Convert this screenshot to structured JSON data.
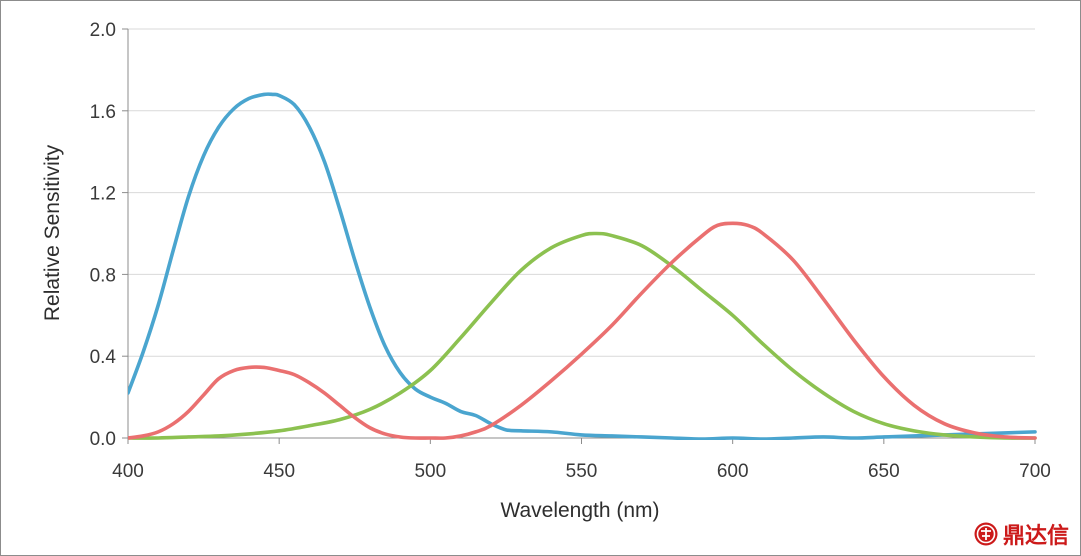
{
  "chart_data": {
    "type": "line",
    "xlabel": "Wavelength (nm)",
    "ylabel": "Relative Sensitivity",
    "xlim": [
      400,
      700
    ],
    "ylim": [
      0,
      2.0
    ],
    "xticks": [
      400,
      450,
      500,
      550,
      600,
      650,
      700
    ],
    "yticks": [
      "0.0",
      "0.4",
      "0.8",
      "1.2",
      "1.6",
      "2.0"
    ],
    "grid": "horizontal",
    "series": [
      {
        "name": "blue",
        "color": "#4aa5cf",
        "x": [
          400,
          405,
          410,
          415,
          420,
          425,
          430,
          435,
          440,
          445,
          448,
          450,
          455,
          460,
          465,
          470,
          475,
          480,
          485,
          490,
          495,
          500,
          505,
          510,
          515,
          520,
          525,
          530,
          540,
          550,
          560,
          570,
          580,
          590,
          600,
          610,
          620,
          630,
          640,
          650,
          660,
          670,
          680,
          690,
          700
        ],
        "y": [
          0.22,
          0.42,
          0.65,
          0.92,
          1.18,
          1.38,
          1.52,
          1.61,
          1.66,
          1.68,
          1.68,
          1.675,
          1.63,
          1.52,
          1.35,
          1.12,
          0.87,
          0.64,
          0.45,
          0.32,
          0.24,
          0.2,
          0.17,
          0.13,
          0.11,
          0.07,
          0.04,
          0.035,
          0.03,
          0.015,
          0.01,
          0.005,
          0.0,
          -0.005,
          0.0,
          -0.005,
          0.0,
          0.005,
          0.0,
          0.005,
          0.01,
          0.015,
          0.02,
          0.025,
          0.03
        ]
      },
      {
        "name": "green",
        "color": "#8cc150",
        "x": [
          400,
          410,
          420,
          430,
          440,
          450,
          460,
          470,
          480,
          490,
          500,
          510,
          520,
          530,
          540,
          550,
          555,
          560,
          570,
          580,
          590,
          600,
          610,
          620,
          630,
          640,
          650,
          660,
          670,
          680,
          690,
          700
        ],
        "y": [
          0.0,
          0.0,
          0.005,
          0.01,
          0.02,
          0.035,
          0.06,
          0.09,
          0.14,
          0.22,
          0.33,
          0.49,
          0.66,
          0.82,
          0.93,
          0.99,
          1.0,
          0.99,
          0.94,
          0.84,
          0.72,
          0.6,
          0.46,
          0.33,
          0.22,
          0.13,
          0.07,
          0.035,
          0.015,
          0.005,
          0.0,
          0.0
        ]
      },
      {
        "name": "red",
        "color": "#ea7070",
        "x": [
          400,
          405,
          410,
          415,
          420,
          425,
          430,
          435,
          440,
          445,
          450,
          455,
          460,
          465,
          470,
          475,
          480,
          485,
          490,
          495,
          500,
          505,
          510,
          515,
          520,
          530,
          540,
          550,
          560,
          570,
          580,
          590,
          595,
          600,
          605,
          610,
          620,
          630,
          640,
          650,
          660,
          670,
          680,
          690,
          700
        ],
        "y": [
          0.0,
          0.01,
          0.03,
          0.07,
          0.13,
          0.21,
          0.29,
          0.33,
          0.345,
          0.345,
          0.33,
          0.31,
          0.27,
          0.22,
          0.16,
          0.1,
          0.05,
          0.02,
          0.005,
          0.0,
          0.0,
          0.0,
          0.01,
          0.03,
          0.06,
          0.16,
          0.28,
          0.41,
          0.55,
          0.71,
          0.86,
          0.99,
          1.04,
          1.05,
          1.04,
          1.0,
          0.87,
          0.68,
          0.48,
          0.3,
          0.16,
          0.07,
          0.025,
          0.005,
          0.0
        ]
      }
    ]
  },
  "watermark": {
    "text": "鼎达信",
    "icon": "seal-logo-icon"
  }
}
